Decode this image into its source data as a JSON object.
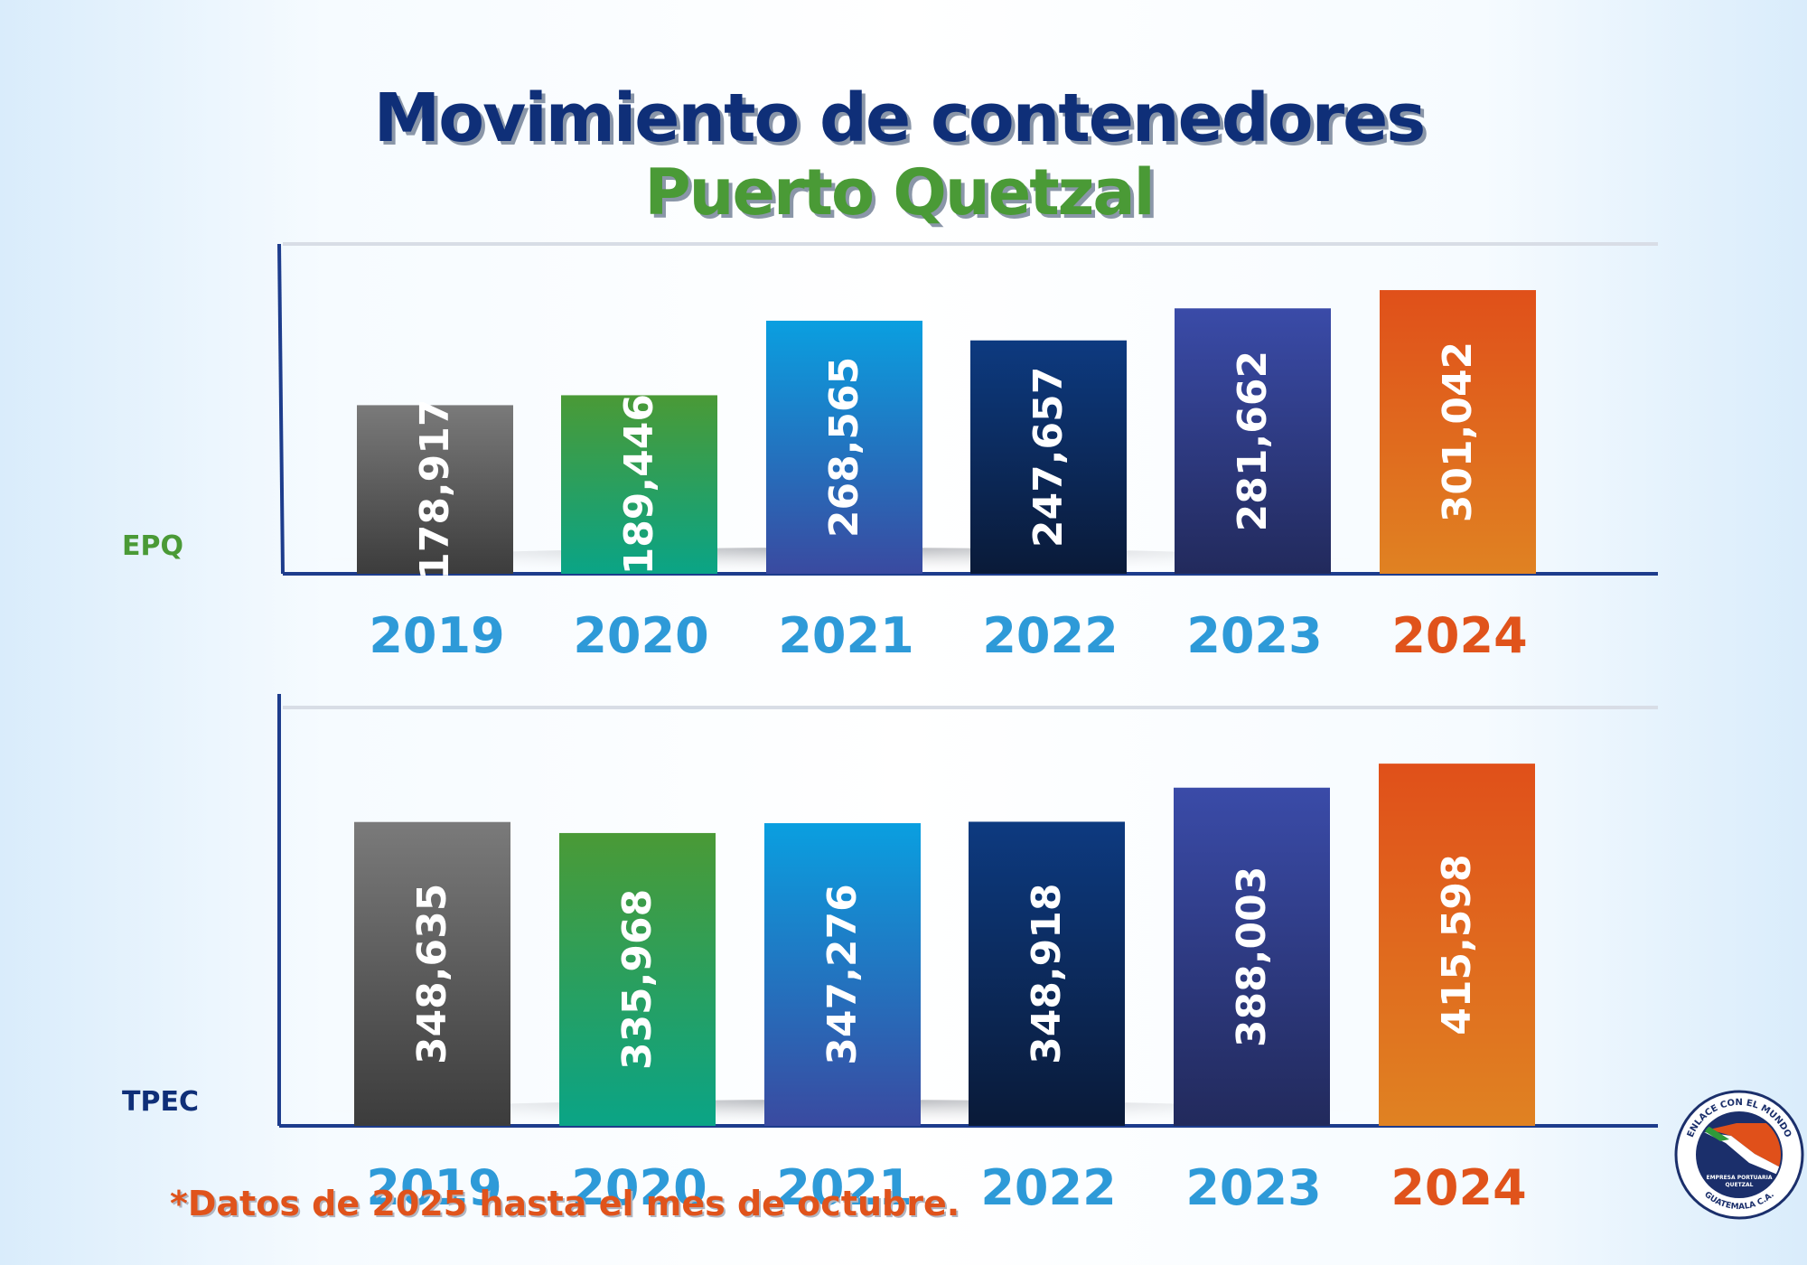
{
  "title": "Movimiento de contenedores",
  "subtitle": "Puerto Quetzal",
  "footnote": "*Datos de 2025 hasta el mes de octubre.",
  "logo": {
    "top_text": "ENLACE CON EL MUNDO",
    "center_text_1": "EMPRESA PORTUARIA",
    "center_text_2": "QUETZAL",
    "bottom_text": "GUATEMALA C.A."
  },
  "colors": {
    "title": "#0f2f78",
    "subtitle": "#4a9a36",
    "year_label": "#2e9ad8",
    "year_label_highlight": "#e0531b",
    "axis": "#1d3c8c"
  },
  "chart_data": [
    {
      "type": "bar",
      "title": "EPQ",
      "categories": [
        "2019",
        "2020",
        "2021",
        "2022",
        "2023",
        "2024"
      ],
      "values": [
        178917,
        189446,
        268565,
        247657,
        281662,
        301042
      ],
      "labels": [
        "178,917",
        "189,446",
        "268,565",
        "247,657",
        "281,662",
        "301,042"
      ],
      "ylim": [
        0,
        350000
      ],
      "highlight_category": "2024"
    },
    {
      "type": "bar",
      "title": "TPEC",
      "categories": [
        "2019",
        "2020",
        "2021",
        "2022",
        "2023",
        "2024"
      ],
      "values": [
        348635,
        335968,
        347276,
        348918,
        388003,
        415598
      ],
      "labels": [
        "348,635",
        "335,968",
        "347,276",
        "348,918",
        "388,003",
        "415,598"
      ],
      "ylim": [
        0,
        480000
      ],
      "highlight_category": "2024"
    }
  ]
}
